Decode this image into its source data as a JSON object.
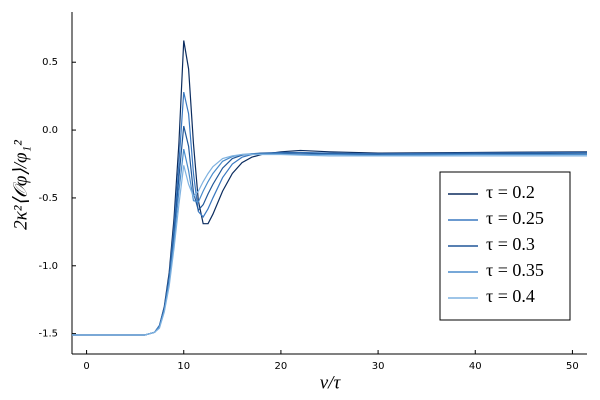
{
  "chart_data": {
    "type": "line",
    "x_label": "v/τ",
    "y_label": "2κ²⟨𝒪φ⟩/φ₁²",
    "x": [
      -1.5,
      5,
      6,
      7,
      7.5,
      8,
      8.5,
      9,
      9.5,
      10,
      10.5,
      11,
      11.5,
      12,
      12.5,
      13,
      14,
      15,
      16,
      17,
      18,
      20,
      22,
      25,
      30,
      40,
      51.5
    ],
    "series": [
      {
        "name": "τ = 0.2",
        "color": "#0b2c5f",
        "values": [
          -1.51,
          -1.51,
          -1.51,
          -1.49,
          -1.44,
          -1.3,
          -1.05,
          -0.65,
          -0.1,
          0.66,
          0.45,
          -0.1,
          -0.52,
          -0.69,
          -0.69,
          -0.62,
          -0.45,
          -0.32,
          -0.24,
          -0.2,
          -0.18,
          -0.16,
          -0.15,
          -0.16,
          -0.17,
          -0.165,
          -0.16
        ]
      },
      {
        "name": "τ = 0.25",
        "color": "#3a78c0",
        "values": [
          -1.51,
          -1.51,
          -1.51,
          -1.49,
          -1.44,
          -1.31,
          -1.08,
          -0.72,
          -0.25,
          0.28,
          0.12,
          -0.32,
          -0.6,
          -0.64,
          -0.58,
          -0.5,
          -0.35,
          -0.25,
          -0.2,
          -0.18,
          -0.17,
          -0.165,
          -0.165,
          -0.17,
          -0.175,
          -0.17,
          -0.165
        ]
      },
      {
        "name": "τ = 0.3",
        "color": "#205799",
        "values": [
          -1.51,
          -1.51,
          -1.51,
          -1.49,
          -1.45,
          -1.32,
          -1.1,
          -0.77,
          -0.35,
          0.03,
          -0.12,
          -0.46,
          -0.59,
          -0.55,
          -0.47,
          -0.4,
          -0.28,
          -0.21,
          -0.185,
          -0.175,
          -0.17,
          -0.17,
          -0.17,
          -0.175,
          -0.18,
          -0.175,
          -0.17
        ]
      },
      {
        "name": "τ = 0.35",
        "color": "#4a8ccb",
        "values": [
          -1.51,
          -1.51,
          -1.51,
          -1.49,
          -1.45,
          -1.33,
          -1.12,
          -0.82,
          -0.45,
          -0.14,
          -0.3,
          -0.52,
          -0.53,
          -0.45,
          -0.38,
          -0.32,
          -0.23,
          -0.195,
          -0.18,
          -0.175,
          -0.175,
          -0.175,
          -0.18,
          -0.18,
          -0.185,
          -0.18,
          -0.18
        ]
      },
      {
        "name": "τ = 0.4",
        "color": "#7fb2e0",
        "values": [
          -1.51,
          -1.51,
          -1.51,
          -1.49,
          -1.46,
          -1.34,
          -1.15,
          -0.87,
          -0.55,
          -0.26,
          -0.4,
          -0.49,
          -0.45,
          -0.38,
          -0.32,
          -0.27,
          -0.21,
          -0.19,
          -0.18,
          -0.18,
          -0.18,
          -0.18,
          -0.185,
          -0.19,
          -0.19,
          -0.19,
          -0.19
        ]
      }
    ],
    "xlim": [
      -1.5,
      51.5
    ],
    "ylim": [
      -1.65,
      0.87
    ],
    "xticks": [
      0,
      10,
      20,
      30,
      40,
      50
    ],
    "yticks": [
      0.5,
      {
        "value": 0,
        "label": "0.0"
      },
      -0.5,
      {
        "value": -1,
        "label": "-1.0"
      },
      -1.5
    ],
    "grid": false,
    "legend": "right"
  }
}
